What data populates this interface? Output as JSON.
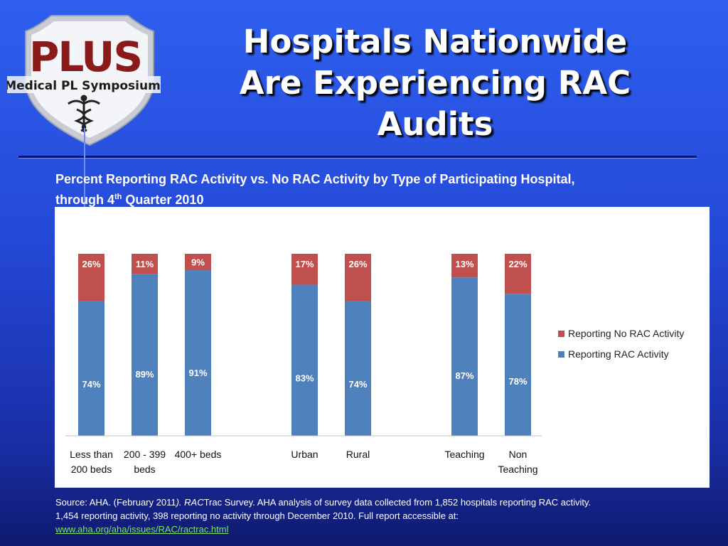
{
  "logo": {
    "wordmark": "PLUS",
    "subtitle": "Medical PL Symposium",
    "emblem": "caduceus-icon"
  },
  "title": {
    "line1": "Hospitals Nationwide",
    "line2": "Are Experiencing RAC",
    "line3": "Audits"
  },
  "chart_heading": {
    "line1": "Percent Reporting RAC Activity vs. No RAC Activity by Type of Participating Hospital,",
    "line2_prefix": "through 4",
    "line2_sup": "th",
    "line2_suffix": " Quarter 2010"
  },
  "chart_data": {
    "type": "bar",
    "stacked": true,
    "categories": [
      [
        "Less than",
        "200 beds"
      ],
      [
        "200 - 399",
        "beds"
      ],
      [
        "400+ beds"
      ],
      [
        "Urban"
      ],
      [
        "Rural"
      ],
      [
        "Teaching"
      ],
      [
        "Non",
        "Teaching"
      ]
    ],
    "groups": [
      [
        0,
        1,
        2
      ],
      [
        3,
        4
      ],
      [
        5,
        6
      ]
    ],
    "series": [
      {
        "name": "Reporting RAC Activity",
        "color": "#4f81bd",
        "values": [
          74,
          89,
          91,
          83,
          74,
          87,
          78
        ],
        "labels": [
          "74%",
          "89%",
          "91%",
          "83%",
          "74%",
          "87%",
          "78%"
        ]
      },
      {
        "name": "Reporting No RAC Activity",
        "color": "#c0504d",
        "values": [
          26,
          11,
          9,
          17,
          26,
          13,
          22
        ],
        "labels": [
          "26%",
          "11%",
          "9%",
          "17%",
          "26%",
          "13%",
          "22%"
        ]
      }
    ],
    "ylim": [
      0,
      100
    ],
    "legend_order": [
      1,
      0
    ],
    "legend_position": "right",
    "grid": false
  },
  "source": {
    "part1": "Source: AHA. (February 2011",
    "part2": "). RAC",
    "part3": "Trac Survey. AHA analysis of survey data collected from 1,852 hospitals reporting RAC activity. 1,454 reporting activity, 398 reporting no activity through December 2010. Full report accessible at: ",
    "link": "www.aha.org/aha/issues/RAC/ractrac.html"
  },
  "colors": {
    "background_top": "#2f5ff0",
    "background_bottom": "#0e1a6e",
    "logo_red": "#8b1a1a",
    "link": "#7fe36a"
  }
}
